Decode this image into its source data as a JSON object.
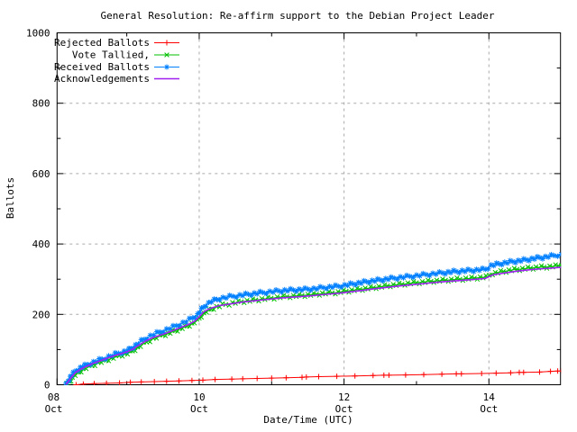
{
  "window": {
    "background": "#ffffff"
  },
  "chart_data": {
    "type": "line",
    "title": "General Resolution: Re-affirm support to the Debian Project Leader",
    "xlabel": "Date/Time (UTC)",
    "ylabel": "Ballots",
    "ylim": [
      0,
      1000
    ],
    "xlim_days_since_oct8": [
      0,
      7
    ],
    "grid": {
      "on": true,
      "color": "#aaaaaa",
      "dash": "3,4"
    },
    "x_major_ticks": [
      {
        "t": 0,
        "day": "08",
        "month": "Oct"
      },
      {
        "t": 2,
        "day": "10",
        "month": "Oct"
      },
      {
        "t": 4,
        "day": "12",
        "month": "Oct"
      },
      {
        "t": 6,
        "day": "14",
        "month": "Oct"
      }
    ],
    "x_minor_ticks_t": [
      1,
      3,
      5
    ],
    "y_major_ticks": [
      0,
      200,
      400,
      600,
      800,
      1000
    ],
    "y_minor_ticks": [
      100,
      300,
      500,
      700,
      900
    ],
    "legend": {
      "position": "top-left",
      "entries": [
        "Rejected Ballots",
        "Vote Tallied,",
        "Received Ballots",
        "Acknowledgements"
      ]
    },
    "series": [
      {
        "name": "Rejected Ballots",
        "color": "#ff0000",
        "marker": "plus",
        "dense": false,
        "points": [
          [
            0.3,
            0
          ],
          [
            0.4,
            2
          ],
          [
            0.55,
            3
          ],
          [
            0.72,
            4
          ],
          [
            0.9,
            5
          ],
          [
            1.05,
            7
          ],
          [
            1.2,
            8
          ],
          [
            1.38,
            9
          ],
          [
            1.55,
            10
          ],
          [
            1.72,
            11
          ],
          [
            1.9,
            12
          ],
          [
            2.05,
            13
          ],
          [
            2.22,
            15
          ],
          [
            2.45,
            16
          ],
          [
            2.6,
            17
          ],
          [
            2.8,
            18
          ],
          [
            3.0,
            19
          ],
          [
            3.2,
            20
          ],
          [
            3.42,
            21
          ],
          [
            3.48,
            22
          ],
          [
            3.65,
            23
          ],
          [
            3.9,
            24
          ],
          [
            4.15,
            25
          ],
          [
            4.4,
            26
          ],
          [
            4.55,
            27
          ],
          [
            4.62,
            27
          ],
          [
            4.85,
            28
          ],
          [
            5.1,
            29
          ],
          [
            5.35,
            30
          ],
          [
            5.55,
            31
          ],
          [
            5.62,
            31
          ],
          [
            5.9,
            32
          ],
          [
            6.1,
            33
          ],
          [
            6.3,
            34
          ],
          [
            6.42,
            35
          ],
          [
            6.48,
            35
          ],
          [
            6.7,
            36
          ],
          [
            6.85,
            38
          ],
          [
            6.95,
            39
          ],
          [
            7.0,
            39
          ]
        ]
      },
      {
        "name": "Vote Tallied,",
        "color": "#00c000",
        "marker": "cross",
        "dense": true,
        "points": [
          [
            0.17,
            0
          ],
          [
            0.21,
            9
          ],
          [
            0.25,
            19
          ],
          [
            0.29,
            28
          ],
          [
            0.34,
            36
          ],
          [
            0.4,
            44
          ],
          [
            0.48,
            51
          ],
          [
            0.56,
            58
          ],
          [
            0.65,
            65
          ],
          [
            0.75,
            72
          ],
          [
            0.85,
            79
          ],
          [
            0.94,
            85
          ],
          [
            1.01,
            89
          ],
          [
            1.08,
            96
          ],
          [
            1.15,
            105
          ],
          [
            1.23,
            116
          ],
          [
            1.32,
            126
          ],
          [
            1.41,
            134
          ],
          [
            1.5,
            141
          ],
          [
            1.6,
            148
          ],
          [
            1.7,
            156
          ],
          [
            1.8,
            164
          ],
          [
            1.9,
            173
          ],
          [
            1.97,
            182
          ],
          [
            2.03,
            196
          ],
          [
            2.1,
            208
          ],
          [
            2.2,
            218
          ],
          [
            2.32,
            226
          ],
          [
            2.46,
            232
          ],
          [
            2.62,
            237
          ],
          [
            2.78,
            241
          ],
          [
            2.95,
            245
          ],
          [
            3.12,
            249
          ],
          [
            3.3,
            252
          ],
          [
            3.5,
            255
          ],
          [
            3.7,
            259
          ],
          [
            3.88,
            262
          ],
          [
            4.03,
            266
          ],
          [
            4.18,
            270
          ],
          [
            4.33,
            274
          ],
          [
            4.48,
            278
          ],
          [
            4.64,
            282
          ],
          [
            4.8,
            286
          ],
          [
            5.0,
            290
          ],
          [
            5.2,
            294
          ],
          [
            5.4,
            297
          ],
          [
            5.6,
            300
          ],
          [
            5.8,
            303
          ],
          [
            5.96,
            306
          ],
          [
            6.05,
            316
          ],
          [
            6.2,
            322
          ],
          [
            6.35,
            327
          ],
          [
            6.5,
            330
          ],
          [
            6.65,
            333
          ],
          [
            6.8,
            335
          ],
          [
            6.92,
            337
          ],
          [
            7.0,
            339
          ]
        ]
      },
      {
        "name": "Received Ballots",
        "color": "#0080ff",
        "marker": "star",
        "dense": true,
        "points": [
          [
            0.16,
            0
          ],
          [
            0.19,
            10
          ],
          [
            0.22,
            22
          ],
          [
            0.26,
            32
          ],
          [
            0.3,
            40
          ],
          [
            0.36,
            48
          ],
          [
            0.42,
            54
          ],
          [
            0.5,
            61
          ],
          [
            0.58,
            67
          ],
          [
            0.66,
            73
          ],
          [
            0.75,
            80
          ],
          [
            0.84,
            87
          ],
          [
            0.93,
            92
          ],
          [
            1.0,
            96
          ],
          [
            1.06,
            103
          ],
          [
            1.12,
            112
          ],
          [
            1.2,
            124
          ],
          [
            1.28,
            134
          ],
          [
            1.37,
            143
          ],
          [
            1.46,
            150
          ],
          [
            1.55,
            157
          ],
          [
            1.64,
            164
          ],
          [
            1.73,
            172
          ],
          [
            1.82,
            180
          ],
          [
            1.91,
            190
          ],
          [
            1.98,
            200
          ],
          [
            2.03,
            214
          ],
          [
            2.09,
            227
          ],
          [
            2.17,
            237
          ],
          [
            2.28,
            245
          ],
          [
            2.42,
            250
          ],
          [
            2.56,
            254
          ],
          [
            2.72,
            258
          ],
          [
            2.88,
            262
          ],
          [
            3.02,
            265
          ],
          [
            3.18,
            268
          ],
          [
            3.38,
            270
          ],
          [
            3.58,
            273
          ],
          [
            3.76,
            277
          ],
          [
            3.92,
            280
          ],
          [
            4.05,
            284
          ],
          [
            4.2,
            289
          ],
          [
            4.35,
            294
          ],
          [
            4.5,
            298
          ],
          [
            4.65,
            302
          ],
          [
            4.82,
            306
          ],
          [
            5.0,
            310
          ],
          [
            5.18,
            314
          ],
          [
            5.36,
            318
          ],
          [
            5.55,
            322
          ],
          [
            5.75,
            325
          ],
          [
            5.95,
            328
          ],
          [
            6.03,
            339
          ],
          [
            6.18,
            345
          ],
          [
            6.33,
            350
          ],
          [
            6.48,
            354
          ],
          [
            6.63,
            359
          ],
          [
            6.78,
            363
          ],
          [
            6.9,
            367
          ],
          [
            7.0,
            371
          ]
        ]
      },
      {
        "name": "Acknowledgements",
        "color": "#a020f0",
        "marker": "none",
        "dense": false,
        "points": [
          [
            0.16,
            1
          ],
          [
            0.2,
            12
          ],
          [
            0.25,
            25
          ],
          [
            0.3,
            36
          ],
          [
            0.38,
            46
          ],
          [
            0.46,
            54
          ],
          [
            0.55,
            62
          ],
          [
            0.65,
            69
          ],
          [
            0.75,
            77
          ],
          [
            0.85,
            84
          ],
          [
            0.95,
            90
          ],
          [
            1.02,
            95
          ],
          [
            1.09,
            102
          ],
          [
            1.17,
            113
          ],
          [
            1.26,
            124
          ],
          [
            1.35,
            133
          ],
          [
            1.45,
            140
          ],
          [
            1.55,
            147
          ],
          [
            1.65,
            155
          ],
          [
            1.75,
            163
          ],
          [
            1.85,
            171
          ],
          [
            1.94,
            181
          ],
          [
            2.0,
            193
          ],
          [
            2.06,
            207
          ],
          [
            2.15,
            217
          ],
          [
            2.28,
            225
          ],
          [
            2.44,
            230
          ],
          [
            2.6,
            235
          ],
          [
            2.78,
            239
          ],
          [
            2.96,
            243
          ],
          [
            3.15,
            247
          ],
          [
            3.35,
            250
          ],
          [
            3.55,
            253
          ],
          [
            3.75,
            257
          ],
          [
            3.93,
            260
          ],
          [
            4.08,
            264
          ],
          [
            4.25,
            268
          ],
          [
            4.42,
            273
          ],
          [
            4.6,
            277
          ],
          [
            4.78,
            281
          ],
          [
            4.98,
            285
          ],
          [
            5.18,
            289
          ],
          [
            5.38,
            293
          ],
          [
            5.58,
            296
          ],
          [
            5.78,
            299
          ],
          [
            5.95,
            302
          ],
          [
            6.05,
            312
          ],
          [
            6.22,
            318
          ],
          [
            6.4,
            323
          ],
          [
            6.58,
            327
          ],
          [
            6.75,
            330
          ],
          [
            6.9,
            332
          ],
          [
            7.0,
            334
          ]
        ]
      }
    ]
  }
}
